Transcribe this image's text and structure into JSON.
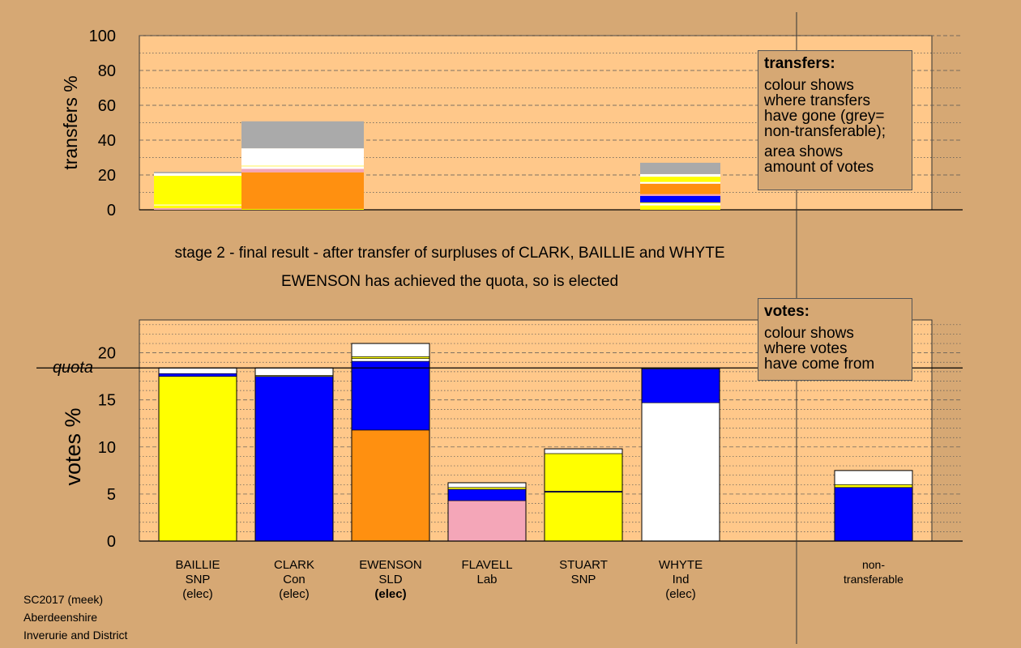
{
  "chart_data": [
    {
      "type": "bar",
      "stacked": true,
      "panel": "transfers",
      "ylabel": "transfers %",
      "ylim": [
        0,
        100
      ],
      "yticks": [
        0,
        20,
        40,
        60,
        80,
        100
      ],
      "bars": [
        {
          "source": "BAILLIE",
          "segments": [
            {
              "color": "#f4a6b8",
              "value": 1.0
            },
            {
              "color": "#ffff00",
              "value": 1.5
            },
            {
              "color": "#ffffff",
              "value": 0.5
            },
            {
              "color": "#ffff00",
              "value": 16.5
            },
            {
              "color": "#ffffff",
              "value": 1.5
            },
            {
              "color": "#aaaaaa",
              "value": 0.8
            }
          ]
        },
        {
          "source": "CLARK",
          "segments": [
            {
              "color": "#ffff00",
              "value": 0.5
            },
            {
              "color": "#ff9010",
              "value": 21.0
            },
            {
              "color": "#f4a6b8",
              "value": 2.0
            },
            {
              "color": "#ffffff",
              "value": 1.5
            },
            {
              "color": "#ffff00",
              "value": 0.3
            },
            {
              "color": "#ffffff",
              "value": 10.0
            },
            {
              "color": "#aaaaaa",
              "value": 15.5
            }
          ]
        },
        {
          "source": "WHYTE",
          "segments": [
            {
              "color": "#ffff00",
              "value": 2.5
            },
            {
              "color": "#ffffff",
              "value": 1.2
            },
            {
              "color": "#ffff00",
              "value": 0.5
            },
            {
              "color": "#0000ff",
              "value": 3.8
            },
            {
              "color": "#f4a6b8",
              "value": 1.0
            },
            {
              "color": "#ff9010",
              "value": 6.0
            },
            {
              "color": "#ffffff",
              "value": 1.0
            },
            {
              "color": "#ffff00",
              "value": 3.0
            },
            {
              "color": "#ffffff",
              "value": 1.5
            },
            {
              "color": "#aaaaaa",
              "value": 6.5
            }
          ]
        }
      ]
    },
    {
      "type": "bar",
      "stacked": true,
      "panel": "votes",
      "ylabel": "votes %",
      "ylim": [
        0,
        23.5
      ],
      "yticks": [
        0,
        5,
        10,
        15,
        20
      ],
      "quota": 18.4,
      "quota_label": "quota",
      "categories": [
        "BAILLIE SNP (elec)",
        "CLARK Con (elec)",
        "EWENSON SLD (elec)",
        "FLAVELL Lab",
        "STUART SNP",
        "WHYTE Ind (elec)",
        "non-transferable"
      ],
      "bars": [
        {
          "candidate": "BAILLIE",
          "segments": [
            {
              "color": "#ffff00",
              "value": 17.5
            },
            {
              "color": "#0000ff",
              "value": 0.3
            },
            {
              "color": "#ffffff",
              "value": 0.6
            }
          ]
        },
        {
          "candidate": "CLARK",
          "segments": [
            {
              "color": "#0000ff",
              "value": 17.5
            },
            {
              "color": "#ffff00",
              "value": 0.1
            },
            {
              "color": "#ffffff",
              "value": 0.8
            }
          ]
        },
        {
          "candidate": "EWENSON",
          "segments": [
            {
              "color": "#ff9010",
              "value": 11.8
            },
            {
              "color": "#0000ff",
              "value": 7.3
            },
            {
              "color": "#ffffff",
              "value": 0.3
            },
            {
              "color": "#ffff00",
              "value": 0.2
            },
            {
              "color": "#ffffff",
              "value": 1.4
            }
          ]
        },
        {
          "candidate": "FLAVELL",
          "segments": [
            {
              "color": "#f4a6b8",
              "value": 4.3
            },
            {
              "color": "#0000ff",
              "value": 1.2
            },
            {
              "color": "#ffff00",
              "value": 0.2
            },
            {
              "color": "#ffffff",
              "value": 0.5
            }
          ]
        },
        {
          "candidate": "STUART",
          "segments": [
            {
              "color": "#ffff00",
              "value": 5.2
            },
            {
              "color": "#0000ff",
              "value": 0.1
            },
            {
              "color": "#ffff00",
              "value": 4.0
            },
            {
              "color": "#ffffff",
              "value": 0.5
            }
          ]
        },
        {
          "candidate": "WHYTE",
          "segments": [
            {
              "color": "#ffffff",
              "value": 14.7
            },
            {
              "color": "#0000ff",
              "value": 3.6
            },
            {
              "color": "#ffffff",
              "value": 0.1
            }
          ]
        },
        {
          "candidate": "non-transferable",
          "segments": [
            {
              "color": "#0000ff",
              "value": 5.7
            },
            {
              "color": "#ffff00",
              "value": 0.3
            },
            {
              "color": "#ffffff",
              "value": 1.5
            }
          ]
        }
      ]
    }
  ],
  "captions": {
    "stage": "stage 2 - final result - after transfer of surpluses of CLARK, BAILLIE and WHYTE",
    "status": "EWENSON has achieved the quota, so is elected"
  },
  "legend_transfers": {
    "title": "transfers:",
    "lines1": [
      "colour shows",
      "where transfers",
      "have gone (grey=",
      "non-transferable);"
    ],
    "lines2": [
      "area shows",
      "amount of votes"
    ]
  },
  "legend_votes": {
    "title": "votes:",
    "lines": [
      "colour shows",
      "where votes",
      "have come from"
    ]
  },
  "candidates": [
    {
      "lines": [
        "BAILLIE",
        "SNP",
        "(elec)"
      ],
      "bold_last": false
    },
    {
      "lines": [
        "CLARK",
        "Con",
        "(elec)"
      ],
      "bold_last": false
    },
    {
      "lines": [
        "EWENSON",
        "SLD",
        "(elec)"
      ],
      "bold_last": true
    },
    {
      "lines": [
        "FLAVELL",
        "Lab"
      ],
      "bold_last": false
    },
    {
      "lines": [
        "STUART",
        "SNP"
      ],
      "bold_last": false
    },
    {
      "lines": [
        "WHYTE",
        "Ind",
        "(elec)"
      ],
      "bold_last": false
    },
    {
      "lines": [
        "non-",
        "transferable"
      ],
      "bold_last": false
    }
  ],
  "footer": {
    "line1": "SC2017 (meek)",
    "line2": "Aberdeenshire",
    "line3": "Inverurie and District"
  },
  "colors": {
    "background": "#d6a874",
    "plot_bg": "#ffc88a",
    "snp_yellow": "#ffff00",
    "con_blue": "#0000ff",
    "ld_orange": "#ff9010",
    "lab_pink": "#f4a6b8",
    "ind_white": "#ffffff",
    "non_transferable_grey": "#aaaaaa"
  }
}
